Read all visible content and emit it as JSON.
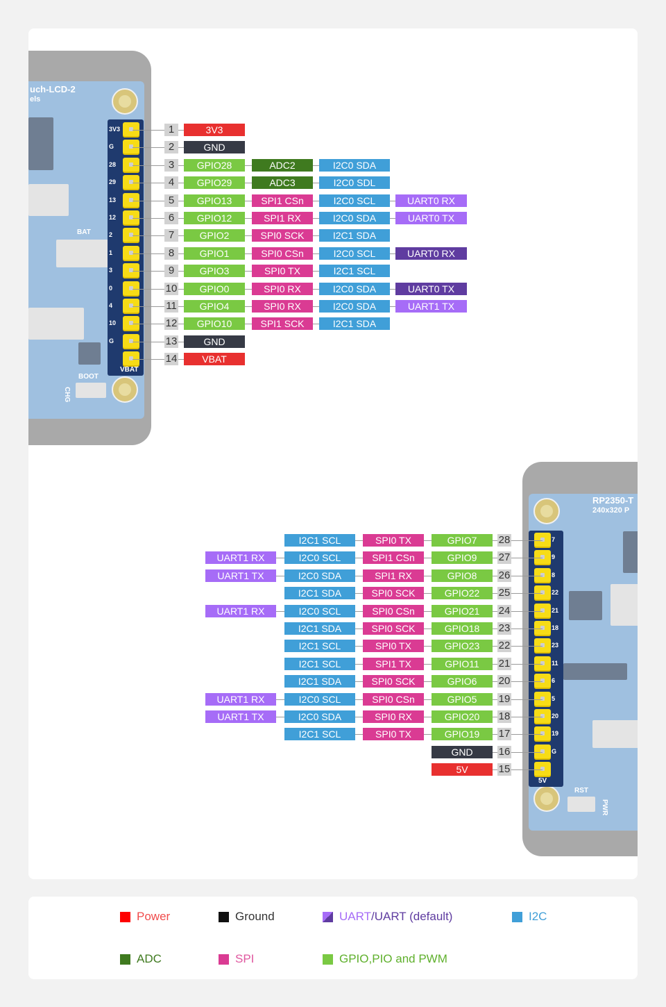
{
  "colors": {
    "power": "#e8302f",
    "ground": "#363a45",
    "gpio": "#7ac943",
    "adc": "#3f7a1f",
    "i2c": "#409fd8",
    "spi": "#da3b93",
    "uart": "#a66cf7",
    "uart_default": "#5f3ca0"
  },
  "top_board": {
    "silk_title": "uch-LCD-2",
    "silk_sub": "els",
    "pin_labels": [
      "3V3",
      "G",
      "28",
      "29",
      "13",
      "12",
      "2",
      "1",
      "3",
      "0",
      "4",
      "10",
      "G"
    ],
    "bottom_label": "VBAT",
    "bat_label": "BAT",
    "boot_label": "BOOT",
    "chg_label": "CHG"
  },
  "bottom_board": {
    "silk_title": "RP2350-T",
    "silk_sub": "240x320 P",
    "pin_labels": [
      "7",
      "9",
      "8",
      "22",
      "21",
      "18",
      "23",
      "11",
      "6",
      "5",
      "20",
      "19",
      "G"
    ],
    "bottom_label": "5V",
    "rst_label": "RST",
    "pwr_label": "PWR"
  },
  "top_pins": [
    {
      "num": "1",
      "cells": [
        {
          "text": "3V3",
          "type": "power"
        }
      ]
    },
    {
      "num": "2",
      "cells": [
        {
          "text": "GND",
          "type": "ground"
        }
      ]
    },
    {
      "num": "3",
      "cells": [
        {
          "text": "GPIO28",
          "type": "gpio"
        },
        {
          "text": "ADC2",
          "type": "adc"
        },
        {
          "text": "I2C0 SDA",
          "type": "i2c"
        }
      ]
    },
    {
      "num": "4",
      "cells": [
        {
          "text": "GPIO29",
          "type": "gpio"
        },
        {
          "text": "ADC3",
          "type": "adc"
        },
        {
          "text": "I2C0 SDL",
          "type": "i2c"
        }
      ]
    },
    {
      "num": "5",
      "cells": [
        {
          "text": "GPIO13",
          "type": "gpio"
        },
        {
          "text": "SPI1 CSn",
          "type": "spi"
        },
        {
          "text": "I2C0 SCL",
          "type": "i2c"
        },
        {
          "text": "UART0 RX",
          "type": "uart"
        }
      ]
    },
    {
      "num": "6",
      "cells": [
        {
          "text": "GPIO12",
          "type": "gpio"
        },
        {
          "text": "SPI1 RX",
          "type": "spi"
        },
        {
          "text": "I2C0 SDA",
          "type": "i2c"
        },
        {
          "text": "UART0 TX",
          "type": "uart"
        }
      ]
    },
    {
      "num": "7",
      "cells": [
        {
          "text": "GPIO2",
          "type": "gpio"
        },
        {
          "text": "SPI0 SCK",
          "type": "spi"
        },
        {
          "text": "I2C1 SDA",
          "type": "i2c"
        }
      ]
    },
    {
      "num": "8",
      "cells": [
        {
          "text": "GPIO1",
          "type": "gpio"
        },
        {
          "text": "SPI0 CSn",
          "type": "spi"
        },
        {
          "text": "I2C0 SCL",
          "type": "i2c"
        },
        {
          "text": "UART0 RX",
          "type": "uart_default"
        }
      ]
    },
    {
      "num": "9",
      "cells": [
        {
          "text": "GPIO3",
          "type": "gpio"
        },
        {
          "text": "SPI0 TX",
          "type": "spi"
        },
        {
          "text": "I2C1 SCL",
          "type": "i2c"
        }
      ]
    },
    {
      "num": "10",
      "cells": [
        {
          "text": "GPIO0",
          "type": "gpio"
        },
        {
          "text": "SPI0 RX",
          "type": "spi"
        },
        {
          "text": "I2C0 SDA",
          "type": "i2c"
        },
        {
          "text": "UART0 TX",
          "type": "uart_default"
        }
      ]
    },
    {
      "num": "11",
      "cells": [
        {
          "text": "GPIO4",
          "type": "gpio"
        },
        {
          "text": "SPI0 RX",
          "type": "spi"
        },
        {
          "text": "I2C0 SDA",
          "type": "i2c"
        },
        {
          "text": "UART1 TX",
          "type": "uart"
        }
      ]
    },
    {
      "num": "12",
      "cells": [
        {
          "text": "GPIO10",
          "type": "gpio"
        },
        {
          "text": "SPI1 SCK",
          "type": "spi"
        },
        {
          "text": "I2C1 SDA",
          "type": "i2c"
        }
      ]
    },
    {
      "num": "13",
      "cells": [
        {
          "text": "GND",
          "type": "ground"
        }
      ]
    },
    {
      "num": "14",
      "cells": [
        {
          "text": "VBAT",
          "type": "power"
        }
      ]
    }
  ],
  "bottom_pins": [
    {
      "num": "28",
      "cells": [
        {
          "text": "GPIO7",
          "type": "gpio"
        },
        {
          "text": "SPI0 TX",
          "type": "spi"
        },
        {
          "text": "I2C1 SCL",
          "type": "i2c"
        }
      ]
    },
    {
      "num": "27",
      "cells": [
        {
          "text": "GPIO9",
          "type": "gpio"
        },
        {
          "text": "SPI1 CSn",
          "type": "spi"
        },
        {
          "text": "I2C0 SCL",
          "type": "i2c"
        },
        {
          "text": "UART1 RX",
          "type": "uart"
        }
      ]
    },
    {
      "num": "26",
      "cells": [
        {
          "text": "GPIO8",
          "type": "gpio"
        },
        {
          "text": "SPI1 RX",
          "type": "spi"
        },
        {
          "text": "I2C0 SDA",
          "type": "i2c"
        },
        {
          "text": "UART1 TX",
          "type": "uart"
        }
      ]
    },
    {
      "num": "25",
      "cells": [
        {
          "text": "GPIO22",
          "type": "gpio"
        },
        {
          "text": "SPI0 SCK",
          "type": "spi"
        },
        {
          "text": "I2C1 SDA",
          "type": "i2c"
        }
      ]
    },
    {
      "num": "24",
      "cells": [
        {
          "text": "GPIO21",
          "type": "gpio"
        },
        {
          "text": "SPI0 CSn",
          "type": "spi"
        },
        {
          "text": "I2C0 SCL",
          "type": "i2c"
        },
        {
          "text": "UART1 RX",
          "type": "uart"
        }
      ]
    },
    {
      "num": "23",
      "cells": [
        {
          "text": "GPIO18",
          "type": "gpio"
        },
        {
          "text": "SPI0 SCK",
          "type": "spi"
        },
        {
          "text": "I2C1 SDA",
          "type": "i2c"
        }
      ]
    },
    {
      "num": "22",
      "cells": [
        {
          "text": "GPIO23",
          "type": "gpio"
        },
        {
          "text": "SPI0 TX",
          "type": "spi"
        },
        {
          "text": "I2C1 SCL",
          "type": "i2c"
        }
      ]
    },
    {
      "num": "21",
      "cells": [
        {
          "text": "GPIO11",
          "type": "gpio"
        },
        {
          "text": "SPI1 TX",
          "type": "spi"
        },
        {
          "text": "I2C1 SCL",
          "type": "i2c"
        }
      ]
    },
    {
      "num": "20",
      "cells": [
        {
          "text": "GPIO6",
          "type": "gpio"
        },
        {
          "text": "SPI0 SCK",
          "type": "spi"
        },
        {
          "text": "I2C1 SDA",
          "type": "i2c"
        }
      ]
    },
    {
      "num": "19",
      "cells": [
        {
          "text": "GPIO5",
          "type": "gpio"
        },
        {
          "text": "SPI0 CSn",
          "type": "spi"
        },
        {
          "text": "I2C0 SCL",
          "type": "i2c"
        },
        {
          "text": "UART1 RX",
          "type": "uart"
        }
      ]
    },
    {
      "num": "18",
      "cells": [
        {
          "text": "GPIO20",
          "type": "gpio"
        },
        {
          "text": "SPI0 RX",
          "type": "spi"
        },
        {
          "text": "I2C0 SDA",
          "type": "i2c"
        },
        {
          "text": "UART1 TX",
          "type": "uart"
        }
      ]
    },
    {
      "num": "17",
      "cells": [
        {
          "text": "GPIO19",
          "type": "gpio"
        },
        {
          "text": "SPI0 TX",
          "type": "spi"
        },
        {
          "text": "I2C1 SCL",
          "type": "i2c"
        }
      ]
    },
    {
      "num": "16",
      "cells": [
        {
          "text": "GND",
          "type": "ground"
        }
      ]
    },
    {
      "num": "15",
      "cells": [
        {
          "text": "5V",
          "type": "power"
        }
      ]
    }
  ],
  "legend": {
    "power": "Power",
    "ground": "Ground",
    "uart": "UART",
    "uart_sep": "/",
    "uart_default": "UART (default)",
    "i2c": "I2C",
    "adc": "ADC",
    "spi": "SPI",
    "gpio": "GPIO,PIO and PWM"
  }
}
